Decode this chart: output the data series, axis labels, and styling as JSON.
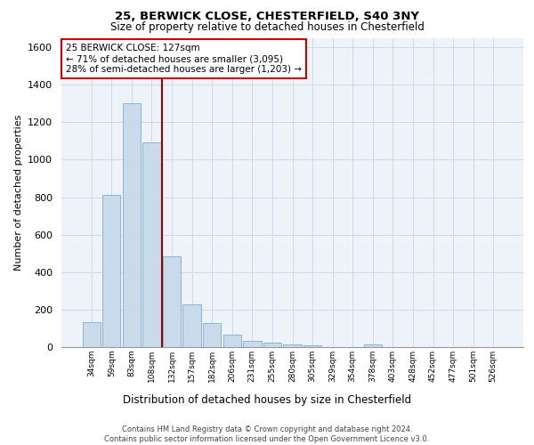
{
  "title1": "25, BERWICK CLOSE, CHESTERFIELD, S40 3NY",
  "title2": "Size of property relative to detached houses in Chesterfield",
  "xlabel": "Distribution of detached houses by size in Chesterfield",
  "ylabel": "Number of detached properties",
  "categories": [
    "34sqm",
    "59sqm",
    "83sqm",
    "108sqm",
    "132sqm",
    "157sqm",
    "182sqm",
    "206sqm",
    "231sqm",
    "255sqm",
    "280sqm",
    "305sqm",
    "329sqm",
    "354sqm",
    "378sqm",
    "403sqm",
    "428sqm",
    "452sqm",
    "477sqm",
    "501sqm",
    "526sqm"
  ],
  "values": [
    135,
    810,
    1300,
    1090,
    485,
    230,
    130,
    65,
    35,
    22,
    13,
    10,
    0,
    0,
    13,
    0,
    0,
    0,
    0,
    0,
    0
  ],
  "bar_color": "#c9daea",
  "bar_edge_color": "#7bafd4",
  "vline_color": "#990000",
  "annotation_text": "25 BERWICK CLOSE: 127sqm\n← 71% of detached houses are smaller (3,095)\n28% of semi-detached houses are larger (1,203) →",
  "annotation_box_color": "#ffffff",
  "annotation_box_edge": "#cc0000",
  "ylim": [
    0,
    1650
  ],
  "yticks": [
    0,
    200,
    400,
    600,
    800,
    1000,
    1200,
    1400,
    1600
  ],
  "footer": "Contains HM Land Registry data © Crown copyright and database right 2024.\nContains public sector information licensed under the Open Government Licence v3.0.",
  "grid_color": "#cdd8e8",
  "bg_color": "#eef2f9"
}
